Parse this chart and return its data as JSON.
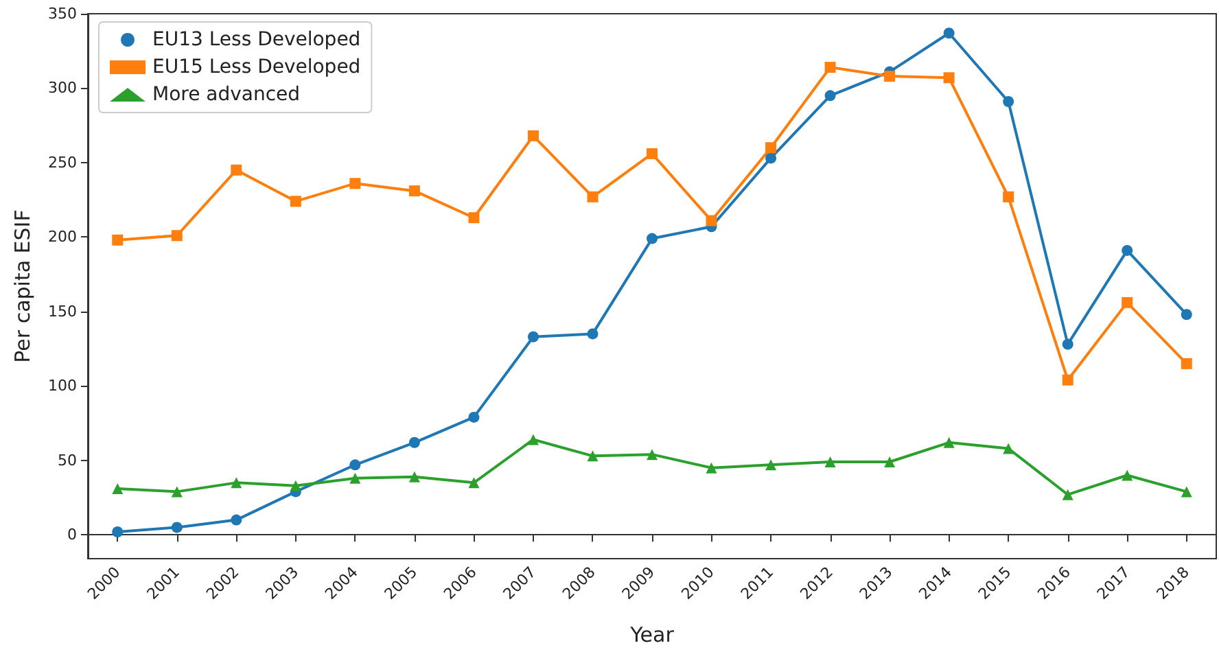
{
  "chart_data": {
    "type": "line",
    "xlabel": "Year",
    "ylabel": "Per capita ESIF",
    "categories": [
      "2000",
      "2001",
      "2002",
      "2003",
      "2004",
      "2005",
      "2006",
      "2007",
      "2008",
      "2009",
      "2010",
      "2011",
      "2012",
      "2013",
      "2014",
      "2015",
      "2016",
      "2017",
      "2018"
    ],
    "series": [
      {
        "name": "EU13 Less Developed",
        "color": "#1f77b4",
        "marker": "circle",
        "values": [
          2,
          5,
          10,
          29,
          47,
          62,
          79,
          133,
          135,
          199,
          207,
          253,
          295,
          311,
          337,
          291,
          128,
          191,
          148
        ]
      },
      {
        "name": "EU15 Less Developed",
        "color": "#ff7f0e",
        "marker": "square",
        "values": [
          198,
          201,
          245,
          224,
          236,
          231,
          213,
          268,
          227,
          256,
          211,
          260,
          314,
          308,
          307,
          227,
          104,
          156,
          115
        ]
      },
      {
        "name": "More advanced",
        "color": "#2ca02c",
        "marker": "triangle",
        "values": [
          31,
          29,
          35,
          33,
          38,
          39,
          35,
          64,
          53,
          54,
          45,
          47,
          49,
          49,
          62,
          58,
          27,
          40,
          29
        ]
      }
    ],
    "ylim": [
      -16,
      350
    ],
    "yticks": [
      0,
      50,
      100,
      150,
      200,
      250,
      300,
      350
    ],
    "legend": "top left",
    "line_style": "solid"
  }
}
